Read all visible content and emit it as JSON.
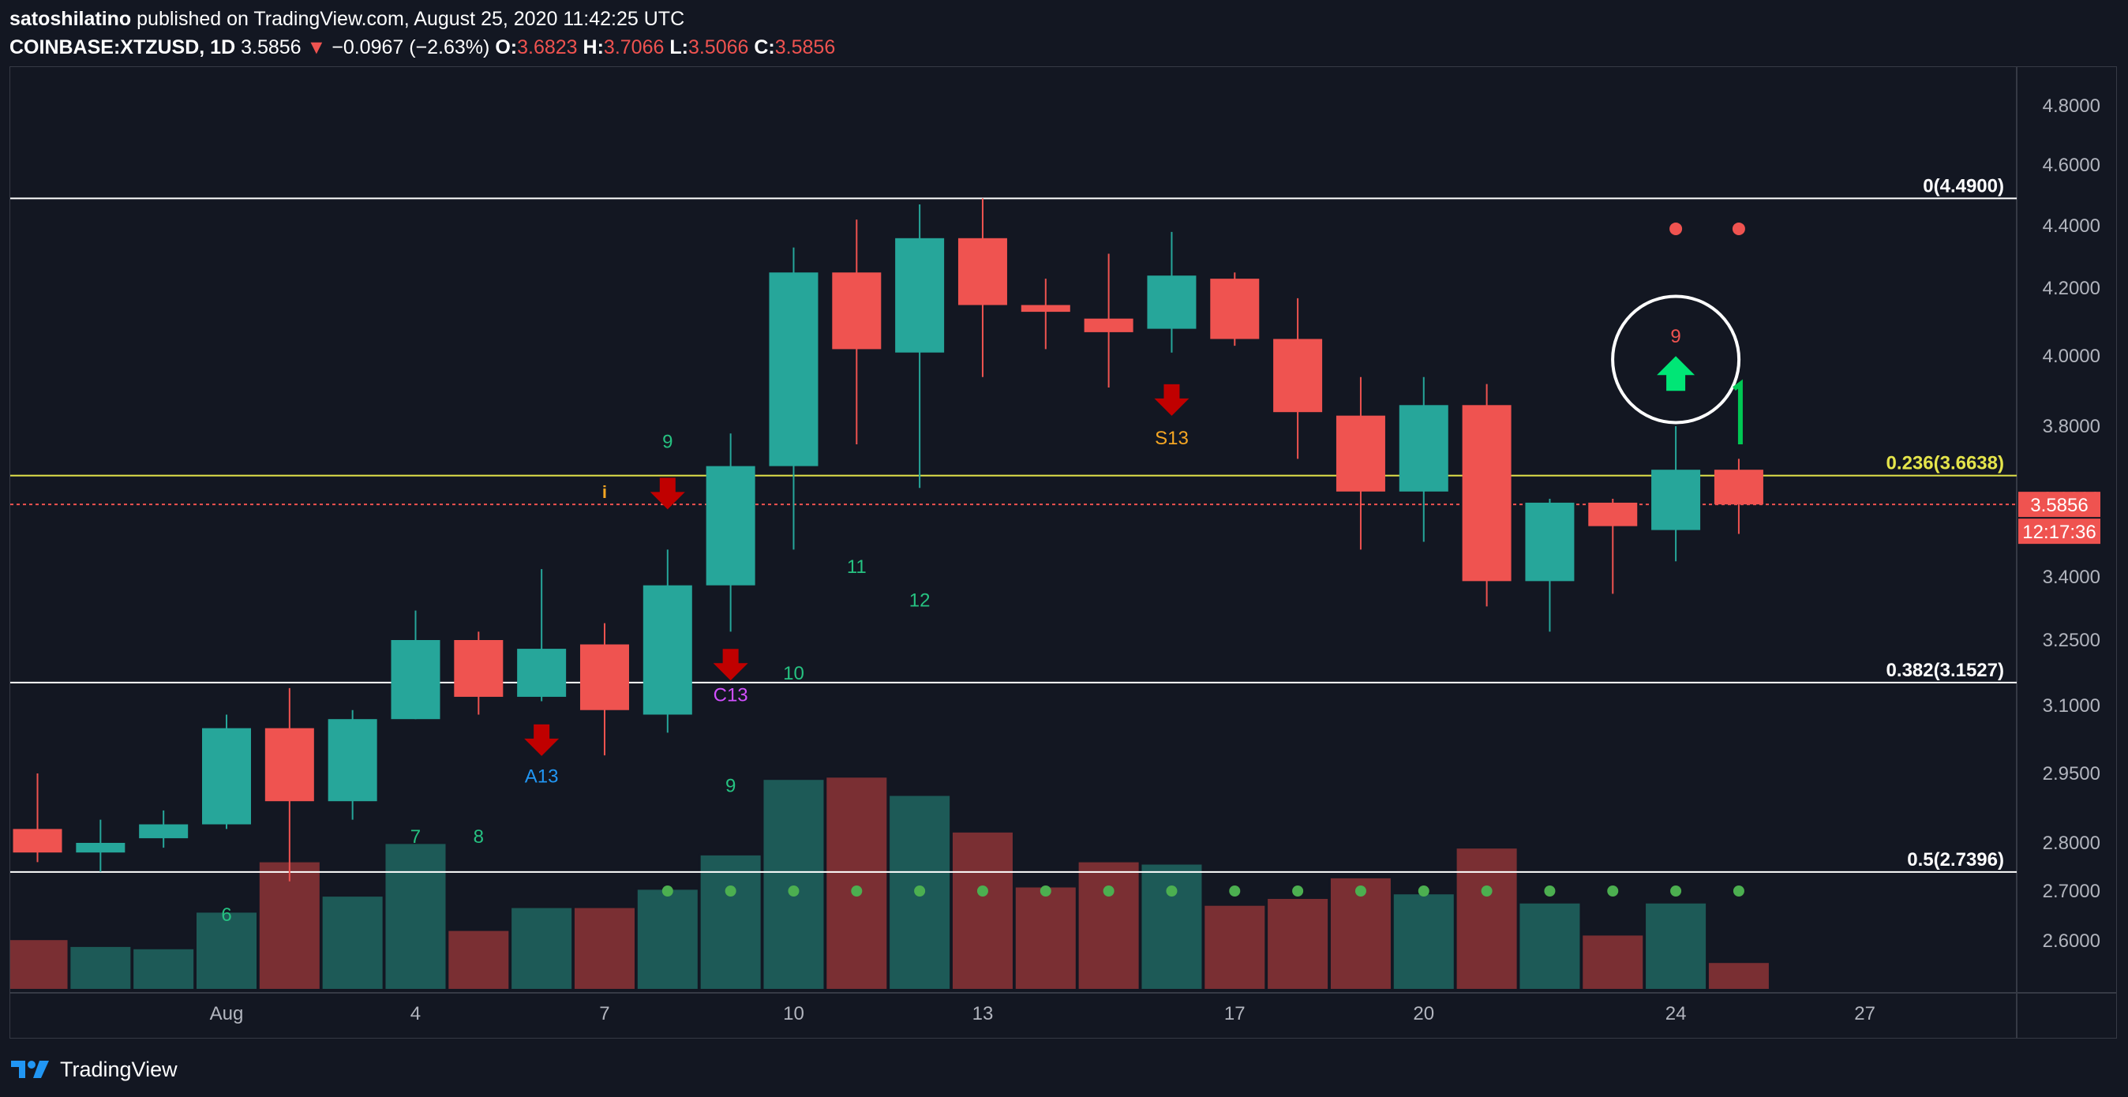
{
  "header": {
    "publisher": "satoshilatino",
    "published_text": "published on TradingView.com, August 25, 2020 11:42:25 UTC",
    "symbol": "COINBASE:XTZUSD, 1D",
    "last": "3.5856",
    "change": "−0.0967 (−2.63%)",
    "o_label": "O:",
    "o_value": "3.6823",
    "h_label": "H:",
    "h_value": "3.7066",
    "l_label": "L:",
    "l_value": "3.5066",
    "c_label": "C:",
    "c_value": "3.5856"
  },
  "footer": {
    "brand": "TradingView",
    "logo_icon": "tradingview-logo-icon"
  },
  "colors": {
    "up": "#26a69a",
    "down": "#ef5350",
    "bg": "#131722",
    "fib": "#ffffff",
    "fib_236": "#e5e54b"
  },
  "chart_data": {
    "type": "candlestick",
    "symbol": "COINBASE:XTZUSD",
    "interval": "1D",
    "x_tick_labels": [
      {
        "day": 1,
        "label": "Aug"
      },
      {
        "day": 4,
        "label": "4"
      },
      {
        "day": 7,
        "label": "7"
      },
      {
        "day": 10,
        "label": "10"
      },
      {
        "day": 13,
        "label": "13"
      },
      {
        "day": 17,
        "label": "17"
      },
      {
        "day": 20,
        "label": "20"
      },
      {
        "day": 24,
        "label": "24"
      },
      {
        "day": 27,
        "label": "27"
      }
    ],
    "y_tick_labels": [
      "4.8000",
      "4.6000",
      "4.4000",
      "4.2000",
      "4.0000",
      "3.8000",
      "3.6000",
      "3.4000",
      "3.2500",
      "3.1000",
      "2.9500",
      "2.8000",
      "2.7000",
      "2.6000"
    ],
    "price_label": "3.5856",
    "countdown_label": "12:17:36",
    "candles": [
      {
        "day": -2,
        "o": 2.83,
        "h": 2.95,
        "l": 2.76,
        "c": 2.78
      },
      {
        "day": -1,
        "o": 2.78,
        "h": 2.85,
        "l": 2.74,
        "c": 2.8
      },
      {
        "day": 0,
        "o": 2.81,
        "h": 2.87,
        "l": 2.79,
        "c": 2.84
      },
      {
        "day": 1,
        "o": 2.84,
        "h": 3.08,
        "l": 2.83,
        "c": 3.05
      },
      {
        "day": 2,
        "o": 3.05,
        "h": 3.14,
        "l": 2.72,
        "c": 2.89
      },
      {
        "day": 3,
        "o": 2.89,
        "h": 3.09,
        "l": 2.85,
        "c": 3.07
      },
      {
        "day": 4,
        "o": 3.07,
        "h": 3.32,
        "l": 3.07,
        "c": 3.25
      },
      {
        "day": 5,
        "o": 3.25,
        "h": 3.27,
        "l": 3.08,
        "c": 3.12
      },
      {
        "day": 6,
        "o": 3.12,
        "h": 3.42,
        "l": 3.11,
        "c": 3.23
      },
      {
        "day": 7,
        "o": 3.24,
        "h": 3.29,
        "l": 2.99,
        "c": 3.09
      },
      {
        "day": 8,
        "o": 3.08,
        "h": 3.47,
        "l": 3.04,
        "c": 3.38
      },
      {
        "day": 9,
        "o": 3.38,
        "h": 3.78,
        "l": 3.27,
        "c": 3.69
      },
      {
        "day": 10,
        "o": 3.69,
        "h": 4.33,
        "l": 3.47,
        "c": 4.25
      },
      {
        "day": 11,
        "o": 4.25,
        "h": 4.42,
        "l": 3.75,
        "c": 4.02
      },
      {
        "day": 12,
        "o": 4.01,
        "h": 4.47,
        "l": 3.63,
        "c": 4.36
      },
      {
        "day": 13,
        "o": 4.36,
        "h": 4.49,
        "l": 3.94,
        "c": 4.15
      },
      {
        "day": 14,
        "o": 4.15,
        "h": 4.23,
        "l": 4.02,
        "c": 4.13
      },
      {
        "day": 15,
        "o": 4.11,
        "h": 4.31,
        "l": 3.91,
        "c": 4.07
      },
      {
        "day": 16,
        "o": 4.08,
        "h": 4.38,
        "l": 4.01,
        "c": 4.24
      },
      {
        "day": 17,
        "o": 4.23,
        "h": 4.25,
        "l": 4.03,
        "c": 4.05
      },
      {
        "day": 18,
        "o": 4.05,
        "h": 4.17,
        "l": 3.71,
        "c": 3.84
      },
      {
        "day": 19,
        "o": 3.83,
        "h": 3.94,
        "l": 3.47,
        "c": 3.62
      },
      {
        "day": 20,
        "o": 3.62,
        "h": 3.94,
        "l": 3.49,
        "c": 3.86
      },
      {
        "day": 21,
        "o": 3.86,
        "h": 3.92,
        "l": 3.33,
        "c": 3.39
      },
      {
        "day": 22,
        "o": 3.39,
        "h": 3.6,
        "l": 3.27,
        "c": 3.59
      },
      {
        "day": 23,
        "o": 3.59,
        "h": 3.6,
        "l": 3.36,
        "c": 3.53
      },
      {
        "day": 24,
        "o": 3.52,
        "h": 3.8,
        "l": 3.44,
        "c": 3.68
      },
      {
        "day": 25,
        "o": 3.68,
        "h": 3.71,
        "l": 3.51,
        "c": 3.5856
      }
    ],
    "volume": [
      {
        "day": -2,
        "v": 0.22,
        "dir": "down"
      },
      {
        "day": -1,
        "v": 0.19,
        "dir": "up"
      },
      {
        "day": 0,
        "v": 0.18,
        "dir": "up"
      },
      {
        "day": 1,
        "v": 0.34,
        "dir": "up"
      },
      {
        "day": 2,
        "v": 0.56,
        "dir": "down"
      },
      {
        "day": 3,
        "v": 0.41,
        "dir": "up"
      },
      {
        "day": 4,
        "v": 0.64,
        "dir": "up"
      },
      {
        "day": 5,
        "v": 0.26,
        "dir": "down"
      },
      {
        "day": 6,
        "v": 0.36,
        "dir": "up"
      },
      {
        "day": 7,
        "v": 0.36,
        "dir": "down"
      },
      {
        "day": 8,
        "v": 0.44,
        "dir": "up"
      },
      {
        "day": 9,
        "v": 0.59,
        "dir": "up"
      },
      {
        "day": 10,
        "v": 0.92,
        "dir": "up"
      },
      {
        "day": 11,
        "v": 0.93,
        "dir": "down"
      },
      {
        "day": 12,
        "v": 0.85,
        "dir": "up"
      },
      {
        "day": 13,
        "v": 0.69,
        "dir": "down"
      },
      {
        "day": 14,
        "v": 0.45,
        "dir": "down"
      },
      {
        "day": 15,
        "v": 0.56,
        "dir": "down"
      },
      {
        "day": 16,
        "v": 0.55,
        "dir": "up"
      },
      {
        "day": 17,
        "v": 0.37,
        "dir": "down"
      },
      {
        "day": 18,
        "v": 0.4,
        "dir": "down"
      },
      {
        "day": 19,
        "v": 0.49,
        "dir": "down"
      },
      {
        "day": 20,
        "v": 0.42,
        "dir": "up"
      },
      {
        "day": 21,
        "v": 0.62,
        "dir": "down"
      },
      {
        "day": 22,
        "v": 0.38,
        "dir": "up"
      },
      {
        "day": 23,
        "v": 0.24,
        "dir": "down"
      },
      {
        "day": 24,
        "v": 0.38,
        "dir": "up"
      },
      {
        "day": 25,
        "v": 0.12,
        "dir": "down"
      }
    ],
    "fib_levels": [
      {
        "label": "0(4.4900)",
        "price": 4.49,
        "color": "#ffffff"
      },
      {
        "label": "0.236(3.6638)",
        "price": 3.6638,
        "color": "#e5e54b"
      },
      {
        "label": "0.382(3.1527)",
        "price": 3.1527,
        "color": "#ffffff"
      },
      {
        "label": "0.5(2.7396)",
        "price": 2.7396,
        "color": "#ffffff"
      }
    ],
    "sequential_counts": [
      {
        "day": 1,
        "price": 2.64,
        "label": "6",
        "color": "#26c281"
      },
      {
        "day": 4,
        "price": 2.8,
        "label": "7",
        "color": "#26c281"
      },
      {
        "day": 5,
        "price": 2.8,
        "label": "8",
        "color": "#26c281"
      },
      {
        "day": 8,
        "price": 3.74,
        "label": "9",
        "color": "#26c281"
      },
      {
        "day": 9,
        "price": 2.91,
        "label": "9",
        "color": "#26c281"
      },
      {
        "day": 9,
        "price": 3.11,
        "label": "C13",
        "color": "#d250ff"
      },
      {
        "day": 6,
        "price": 2.93,
        "label": "A13",
        "color": "#2196f3"
      },
      {
        "day": 10,
        "price": 3.16,
        "label": "10",
        "color": "#26c281"
      },
      {
        "day": 11,
        "price": 3.41,
        "label": "11",
        "color": "#26c281"
      },
      {
        "day": 12,
        "price": 3.33,
        "label": "12",
        "color": "#26c281"
      },
      {
        "day": 16,
        "price": 3.75,
        "label": "S13",
        "color": "#f5a623"
      },
      {
        "day": 24,
        "price": 4.04,
        "label": "9",
        "color": "#ef5350"
      }
    ],
    "sell_arrows": [
      {
        "day": 6,
        "price": 3.02
      },
      {
        "day": 8,
        "price": 3.61
      },
      {
        "day": 9,
        "price": 3.19
      },
      {
        "day": 16,
        "price": 3.87
      }
    ],
    "buy_arrow": {
      "day": 24,
      "price": 3.95
    },
    "info_marker": {
      "day": 7,
      "price": 3.62,
      "label": "i"
    },
    "red_dots": [
      {
        "day": 24,
        "price": 4.39
      },
      {
        "day": 25,
        "price": 4.39
      }
    ],
    "green_dots": [
      8,
      9,
      10,
      11,
      12,
      13,
      14,
      15,
      16,
      17,
      18,
      19,
      20,
      21,
      22,
      23,
      24,
      25
    ],
    "highlight_circle": {
      "day": 24,
      "price": 3.99
    }
  }
}
